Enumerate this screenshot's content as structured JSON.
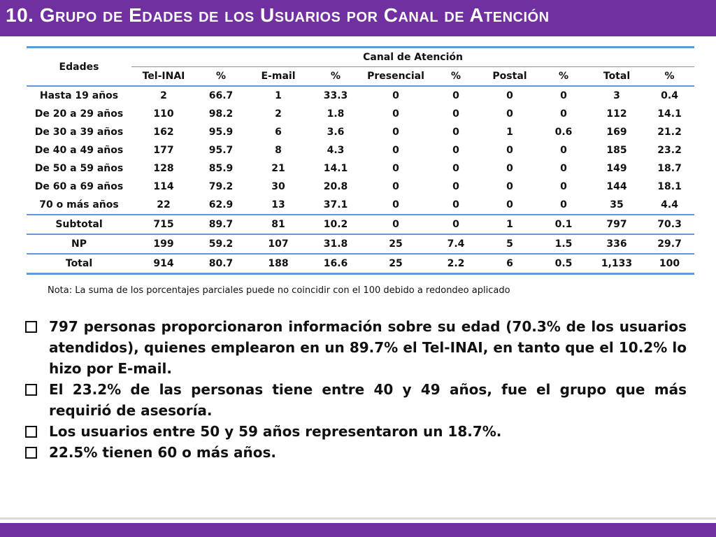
{
  "title": "10. Grupo de  Edades de los Usuarios por Canal de Atención",
  "table": {
    "edades_header": "Edades",
    "canal_header": "Canal de Atención",
    "columns": [
      "Tel-INAI",
      "%",
      "E-mail",
      "%",
      "Presencial",
      "%",
      "Postal",
      "%",
      "Total",
      "%"
    ],
    "rows": [
      {
        "label": "Hasta 19 años",
        "values": [
          "2",
          "66.7",
          "1",
          "33.3",
          "0",
          "0",
          "0",
          "0",
          "3",
          "0.4"
        ]
      },
      {
        "label": "De 20 a 29 años",
        "values": [
          "110",
          "98.2",
          "2",
          "1.8",
          "0",
          "0",
          "0",
          "0",
          "112",
          "14.1"
        ]
      },
      {
        "label": "De 30 a 39 años",
        "values": [
          "162",
          "95.9",
          "6",
          "3.6",
          "0",
          "0",
          "1",
          "0.6",
          "169",
          "21.2"
        ]
      },
      {
        "label": "De 40 a 49 años",
        "values": [
          "177",
          "95.7",
          "8",
          "4.3",
          "0",
          "0",
          "0",
          "0",
          "185",
          "23.2"
        ]
      },
      {
        "label": "De 50 a 59 años",
        "values": [
          "128",
          "85.9",
          "21",
          "14.1",
          "0",
          "0",
          "0",
          "0",
          "149",
          "18.7"
        ]
      },
      {
        "label": "De 60 a 69 años",
        "values": [
          "114",
          "79.2",
          "30",
          "20.8",
          "0",
          "0",
          "0",
          "0",
          "144",
          "18.1"
        ]
      },
      {
        "label": "70 o más años",
        "values": [
          "22",
          "62.9",
          "13",
          "37.1",
          "0",
          "0",
          "0",
          "0",
          "35",
          "4.4"
        ]
      }
    ],
    "subtotal": {
      "label": "Subtotal",
      "values": [
        "715",
        "89.7",
        "81",
        "10.2",
        "0",
        "0",
        "1",
        "0.1",
        "797",
        "70.3"
      ]
    },
    "np": {
      "label": "NP",
      "values": [
        "199",
        "59.2",
        "107",
        "31.8",
        "25",
        "7.4",
        "5",
        "1.5",
        "336",
        "29.7"
      ]
    },
    "total": {
      "label": "Total",
      "values": [
        "914",
        "80.7",
        "188",
        "16.6",
        "25",
        "2.2",
        "6",
        "0.5",
        "1,133",
        "100"
      ]
    }
  },
  "nota": "Nota: La suma de los porcentajes parciales puede no coincidir con el 100 debido a redondeo aplicado",
  "bullets": [
    "797 personas proporcionaron información sobre su edad (70.3% de los usuarios atendidos), quienes emplearon en un 89.7% el Tel-INAI, en tanto que el 10.2% lo hizo por E-mail.",
    "El 23.2% de las personas tiene entre 40 y 49 años, fue el grupo que más requirió de asesoría.",
    "Los usuarios entre 50 y 59 años representaron un 18.7%.",
    "22.5% tienen 60 o más años."
  ],
  "colors": {
    "accent": "#7030a0",
    "table_rule": "#5b9bd5"
  }
}
